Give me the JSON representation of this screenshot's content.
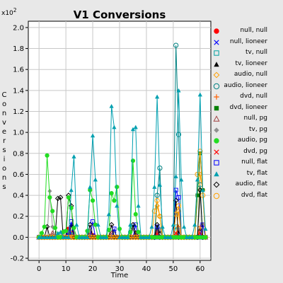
{
  "chart_data": {
    "type": "line",
    "title": "V1 Conversions",
    "xlabel": "Time",
    "ylabel": "Conversions",
    "y_multiplier": "x10",
    "y_multiplier_exp": "2",
    "xlim": [
      -4,
      64
    ],
    "ylim": [
      -0.22,
      2.06
    ],
    "x_ticks": [
      0,
      10,
      20,
      30,
      40,
      50,
      60
    ],
    "y_ticks": [
      -0.2,
      0.0,
      0.2,
      0.4,
      0.6,
      0.8,
      1.0,
      1.2,
      1.4,
      1.6,
      1.8,
      2.0
    ],
    "grid": true,
    "legend_position": "right",
    "series": [
      {
        "name": "null, null",
        "color": "#ff0000",
        "marker": "dot",
        "points": [
          [
            11,
            0.08
          ],
          [
            12,
            0.04
          ],
          [
            19,
            0.05
          ],
          [
            20,
            0.02
          ]
        ]
      },
      {
        "name": "null, lioneer",
        "color": "#0000ff",
        "marker": "x",
        "points": [
          [
            11,
            0.03
          ],
          [
            20,
            0.02
          ],
          [
            44,
            0.05
          ],
          [
            52,
            0.05
          ]
        ]
      },
      {
        "name": "tv, null",
        "color": "#00a0a0",
        "marker": "square",
        "points": [
          [
            12,
            0.05
          ],
          [
            35,
            0.1
          ],
          [
            44,
            0.08
          ],
          [
            51,
            0.1
          ]
        ]
      },
      {
        "name": "tv, lioneer",
        "color": "#000000",
        "marker": "triangle",
        "points": [
          [
            12,
            0.12
          ],
          [
            28,
            0.06
          ],
          [
            36,
            0.05
          ],
          [
            45,
            0.06
          ],
          [
            52,
            0.06
          ],
          [
            60,
            0.08
          ]
        ]
      },
      {
        "name": "audio, null",
        "color": "#ffa000",
        "marker": "diamond-open",
        "points": [
          [
            44,
            0.3
          ],
          [
            45,
            0.2
          ],
          [
            52,
            0.25
          ],
          [
            60,
            0.6
          ],
          [
            61,
            0.45
          ]
        ]
      },
      {
        "name": "audio, lioneer",
        "color": "#008080",
        "marker": "circle-open",
        "points": [
          [
            44,
            0.4
          ],
          [
            45,
            0.66
          ],
          [
            51,
            1.83
          ],
          [
            52,
            0.98
          ],
          [
            60,
            0.5
          ]
        ]
      },
      {
        "name": "dvd, null",
        "color": "#ff6000",
        "marker": "plus",
        "points": [
          [
            44,
            0.05
          ],
          [
            52,
            0.1
          ],
          [
            60,
            0.1
          ]
        ]
      },
      {
        "name": "dvd, lioneer",
        "color": "#008000",
        "marker": "square-filled",
        "points": [
          [
            59,
            0.4
          ],
          [
            60,
            0.8
          ],
          [
            61,
            0.45
          ]
        ]
      },
      {
        "name": "null, pg",
        "color": "#a04040",
        "marker": "triangle-open",
        "points": [
          [
            5,
            0.04
          ],
          [
            11,
            0.05
          ],
          [
            19,
            0.04
          ],
          [
            27,
            0.04
          ],
          [
            36,
            0.03
          ],
          [
            44,
            0.05
          ]
        ]
      },
      {
        "name": "tv, pg",
        "color": "#909090",
        "marker": "diamond-filled",
        "points": [
          [
            4,
            0.44
          ],
          [
            5,
            0.1
          ],
          [
            9,
            0.06
          ],
          [
            13,
            0.04
          ],
          [
            19,
            0.06
          ],
          [
            28,
            0.06
          ],
          [
            35,
            0.08
          ],
          [
            45,
            0.08
          ],
          [
            52,
            0.08
          ],
          [
            61,
            0.12
          ]
        ]
      },
      {
        "name": "audio, pg",
        "color": "#22dd22",
        "marker": "dot",
        "points": [
          [
            1,
            0.04
          ],
          [
            2,
            0.1
          ],
          [
            3,
            0.78
          ],
          [
            4,
            0.38
          ],
          [
            5,
            0.25
          ],
          [
            6,
            0.09
          ],
          [
            9,
            0.05
          ],
          [
            10,
            0.06
          ],
          [
            11,
            0.38
          ],
          [
            12,
            0.28
          ],
          [
            13,
            0.09
          ],
          [
            18,
            0.06
          ],
          [
            19,
            0.45
          ],
          [
            20,
            0.35
          ],
          [
            21,
            0.12
          ],
          [
            26,
            0.07
          ],
          [
            27,
            0.42
          ],
          [
            28,
            0.35
          ],
          [
            29,
            0.48
          ],
          [
            30,
            0.08
          ],
          [
            34,
            0.05
          ],
          [
            35,
            0.73
          ],
          [
            36,
            0.22
          ],
          [
            37,
            0.05
          ]
        ]
      },
      {
        "name": "dvd, pg",
        "color": "#ff0000",
        "marker": "x",
        "points": [
          [
            44,
            0.03
          ],
          [
            51,
            0.04
          ],
          [
            60,
            0.04
          ]
        ]
      },
      {
        "name": "null, flat",
        "color": "#0000ff",
        "marker": "square-open",
        "points": [
          [
            11,
            0.04
          ],
          [
            12,
            0.15
          ],
          [
            20,
            0.15
          ],
          [
            28,
            0.08
          ],
          [
            36,
            0.12
          ],
          [
            44,
            0.1
          ],
          [
            51,
            0.45
          ],
          [
            52,
            0.38
          ],
          [
            61,
            0.12
          ]
        ]
      },
      {
        "name": "tv, flat",
        "color": "#00a0b0",
        "marker": "triangle",
        "points": [
          [
            7,
            0.04
          ],
          [
            8,
            0.05
          ],
          [
            12,
            0.45
          ],
          [
            13,
            0.77
          ],
          [
            14,
            0.12
          ],
          [
            19,
            0.48
          ],
          [
            20,
            0.97
          ],
          [
            21,
            0.55
          ],
          [
            22,
            0.12
          ],
          [
            26,
            0.22
          ],
          [
            27,
            1.25
          ],
          [
            28,
            1.05
          ],
          [
            29,
            0.3
          ],
          [
            34,
            0.12
          ],
          [
            35,
            1.03
          ],
          [
            36,
            1.05
          ],
          [
            37,
            0.3
          ],
          [
            42,
            0.1
          ],
          [
            43,
            0.48
          ],
          [
            44,
            1.34
          ],
          [
            45,
            0.5
          ],
          [
            46,
            0.1
          ],
          [
            50,
            0.12
          ],
          [
            51,
            0.58
          ],
          [
            52,
            1.4
          ],
          [
            53,
            0.55
          ],
          [
            54,
            0.1
          ],
          [
            58,
            0.12
          ],
          [
            59,
            0.55
          ],
          [
            60,
            1.36
          ],
          [
            61,
            0.45
          ],
          [
            62,
            0.08
          ]
        ]
      },
      {
        "name": "audio, flat",
        "color": "#000000",
        "marker": "diamond-open",
        "points": [
          [
            3,
            0.1
          ],
          [
            7,
            0.37
          ],
          [
            8,
            0.38
          ],
          [
            11,
            0.4
          ],
          [
            12,
            0.3
          ],
          [
            19,
            0.12
          ],
          [
            27,
            0.12
          ],
          [
            35,
            0.12
          ],
          [
            44,
            0.12
          ],
          [
            51,
            0.35
          ],
          [
            60,
            0.45
          ]
        ]
      },
      {
        "name": "dvd, flat",
        "color": "#ffa000",
        "marker": "circle-open",
        "points": [
          [
            43,
            0.25
          ],
          [
            44,
            0.35
          ],
          [
            45,
            0.2
          ],
          [
            51,
            0.22
          ],
          [
            52,
            0.3
          ],
          [
            59,
            0.6
          ],
          [
            60,
            0.82
          ],
          [
            61,
            0.4
          ]
        ]
      }
    ]
  },
  "icons": {
    "dot": "filled-circle-marker-icon",
    "x": "x-marker-icon",
    "square": "open-square-marker-icon",
    "triangle": "filled-triangle-marker-icon",
    "diamond-open": "open-diamond-marker-icon",
    "circle-open": "open-circle-marker-icon",
    "plus": "plus-marker-icon",
    "square-filled": "filled-square-marker-icon",
    "triangle-open": "open-triangle-marker-icon",
    "diamond-filled": "filled-diamond-marker-icon"
  }
}
